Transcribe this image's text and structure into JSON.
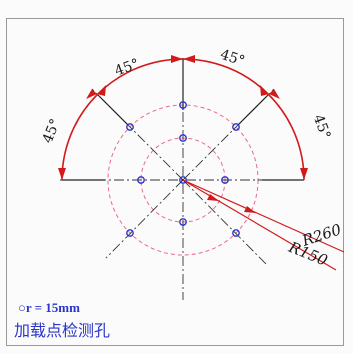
{
  "angles": {
    "upper_left": "45°",
    "upper_right": "45°",
    "left_side": "45°",
    "right_side": "45°"
  },
  "radii": {
    "outer": "R260",
    "inner": "R150"
  },
  "legend": {
    "hole_radius": "○r = 15mm",
    "title": "加载点检测孔"
  },
  "colors": {
    "red": "#d21a1a",
    "pink": "#e76a8a",
    "blue": "#2b35c8",
    "line": "#222222"
  }
}
